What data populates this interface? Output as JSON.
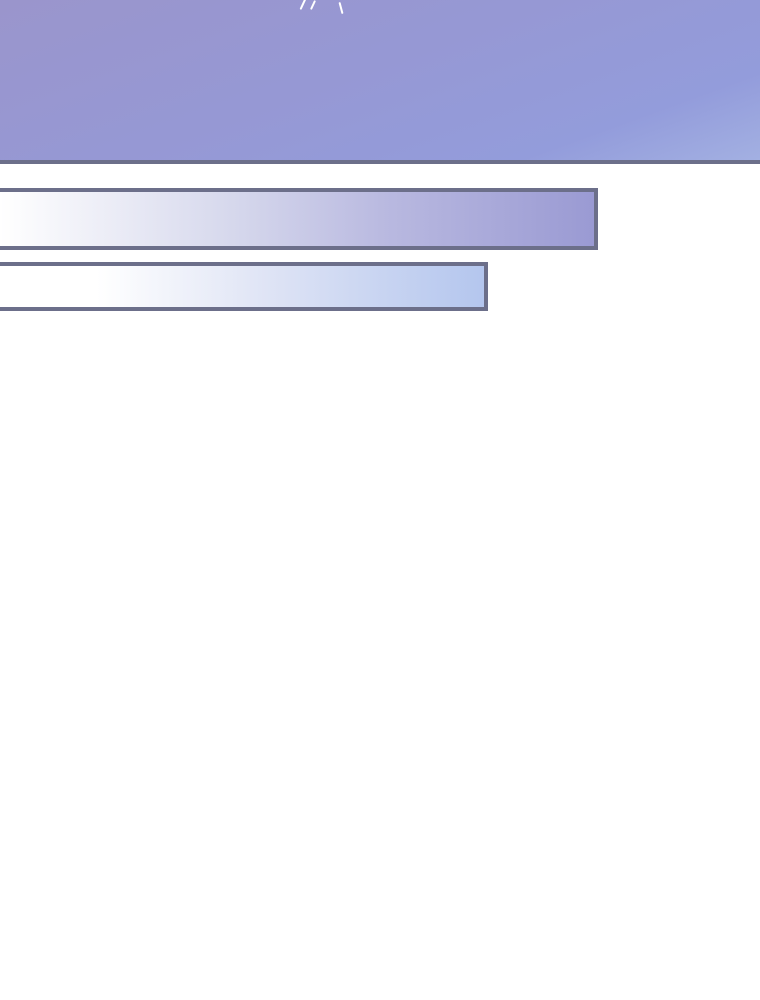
{
  "colors": {
    "panel_background": "#9698d4",
    "panel_border": "#6c6f8a",
    "bar_top_end": "#9a9ad3",
    "bar_bottom_end": "#b4c6ee",
    "page_background": "#ffffff"
  },
  "icons": [
    "sparkle-streaks"
  ]
}
